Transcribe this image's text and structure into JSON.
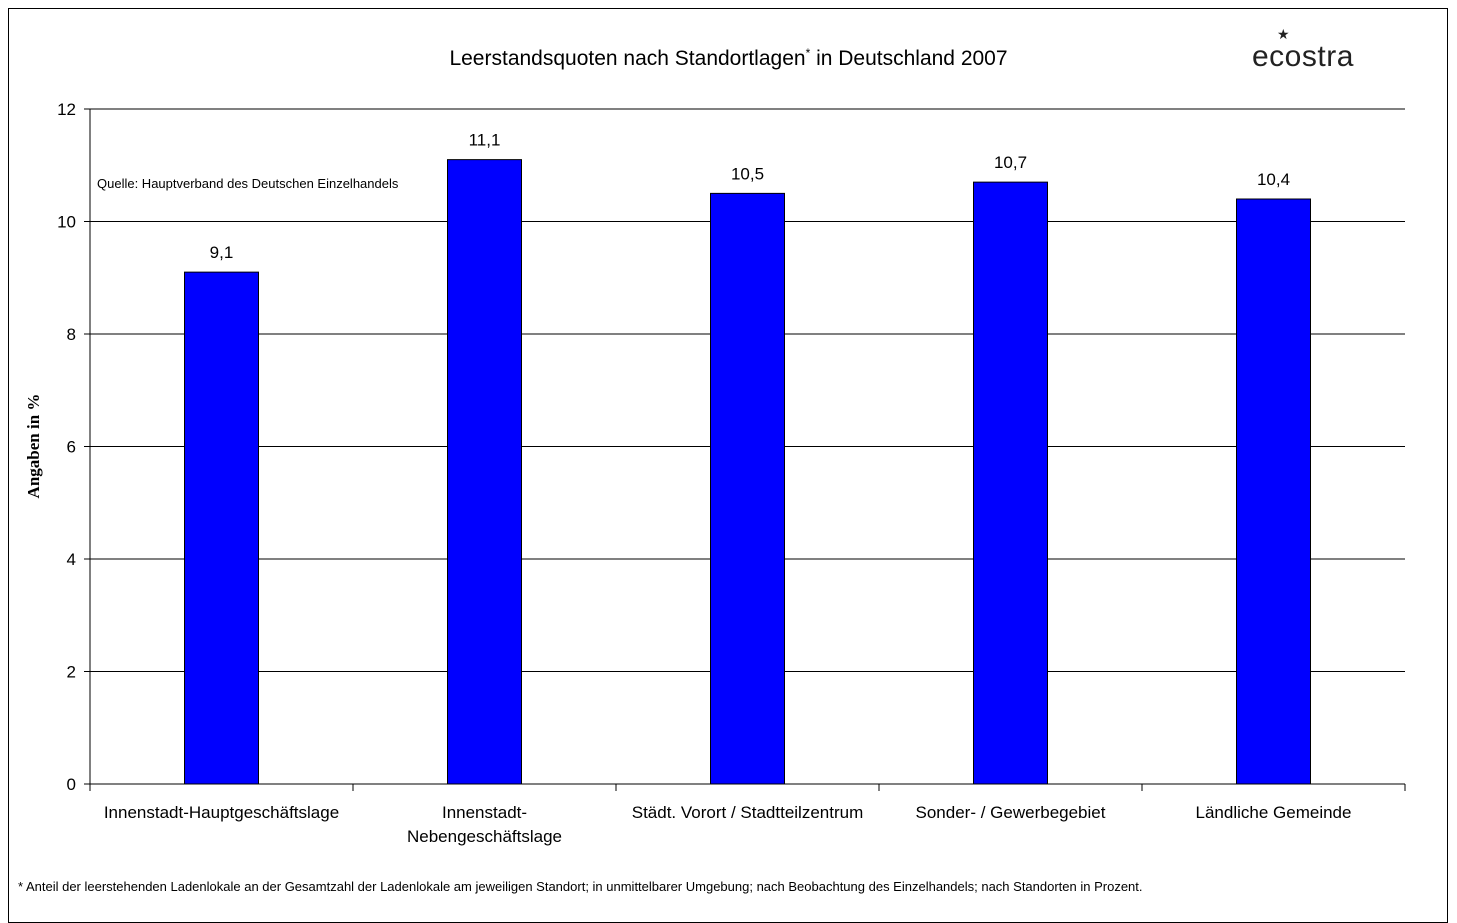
{
  "chart_data": {
    "type": "bar",
    "title": "Leerstandsquoten nach Standortlagen",
    "title_mark": "*",
    "title_suffix": " in Deutschland 2007",
    "ylabel": "Angaben in %",
    "ylim": [
      0,
      12
    ],
    "yticks": [
      "0",
      "2",
      "4",
      "6",
      "8",
      "10",
      "12"
    ],
    "grid": true,
    "categories": [
      "Innenstadt-Hauptgeschäftslage",
      "Innenstadt-\nNebengeschäftslage",
      "Städt. Vorort / Stadtteilzentrum",
      "Sonder- / Gewerbegebiet",
      "Ländliche Gemeinde"
    ],
    "values": [
      9.1,
      11.1,
      10.5,
      10.7,
      10.4
    ],
    "value_labels": [
      "9,1",
      "11,1",
      "10,5",
      "10,7",
      "10,4"
    ],
    "bar_color": "#0000FF",
    "source": "Quelle: Hauptverband des Deutschen Einzelhandels",
    "footnote": "* Anteil der leerstehenden Ladenlokale an der Gesamtzahl der Ladenlokale am jeweiligen Standort; in unmittelbarer Umgebung; nach Beobachtung des Einzelhandels; nach Standorten in Prozent."
  },
  "logo": {
    "text": "ecostra"
  }
}
